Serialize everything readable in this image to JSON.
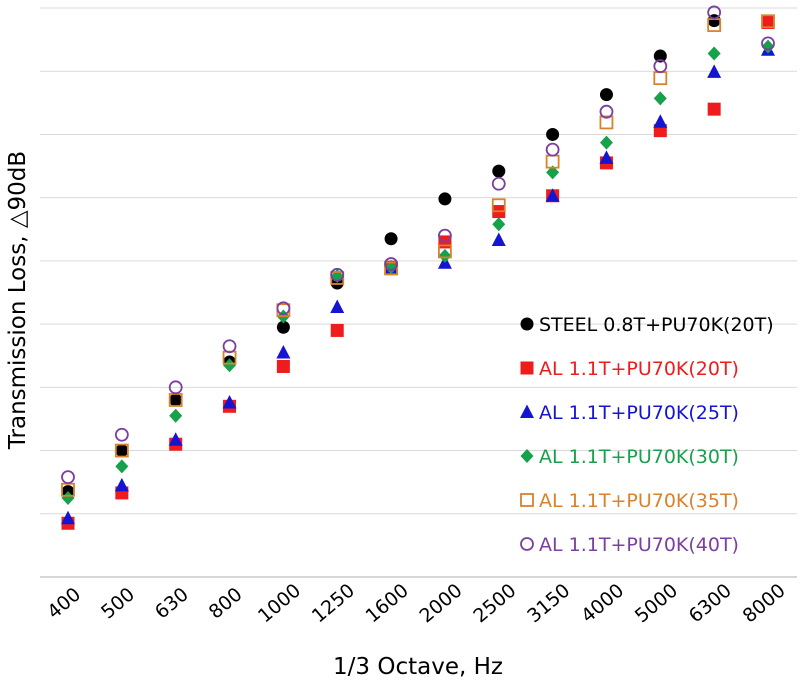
{
  "chart_data": {
    "type": "scatter",
    "title": "",
    "xlabel": "1/3 Octave, Hz",
    "ylabel": "Transmission Loss, △90dB",
    "categories": [
      "400",
      "500",
      "630",
      "800",
      "1000",
      "1250",
      "1600",
      "2000",
      "2500",
      "3150",
      "4000",
      "5000",
      "6300",
      "8000"
    ],
    "y_tick_count": 9,
    "grid": true,
    "legend_position": "right",
    "series": [
      {
        "name": "STEEL 0.8T+PU70K(20T)",
        "marker": "filled-circle",
        "color": "#000000",
        "values": [
          1.35,
          2.0,
          2.8,
          3.4,
          3.95,
          4.65,
          5.35,
          5.98,
          6.42,
          7.0,
          7.63,
          8.24,
          8.8,
          8.78
        ]
      },
      {
        "name": "AL 1.1T+PU70K(20T)",
        "marker": "filled-square",
        "color": "#ee1c1c",
        "values": [
          0.85,
          1.33,
          2.1,
          2.7,
          3.33,
          3.9,
          4.9,
          5.3,
          5.78,
          6.03,
          6.55,
          7.06,
          7.4,
          8.77
        ]
      },
      {
        "name": "AL 1.1T+PU70K(25T)",
        "marker": "filled-triangle",
        "color": "#1414d2",
        "values": [
          0.93,
          1.45,
          2.17,
          2.76,
          3.55,
          4.27,
          4.9,
          4.97,
          5.33,
          6.03,
          6.63,
          7.2,
          7.99,
          8.34
        ]
      },
      {
        "name": "AL 1.1T+PU70K(30T)",
        "marker": "filled-diamond",
        "color": "#17a14a",
        "values": [
          1.25,
          1.75,
          2.55,
          3.35,
          4.12,
          4.76,
          4.9,
          5.08,
          5.58,
          6.4,
          6.87,
          7.57,
          8.28,
          8.39
        ]
      },
      {
        "name": "AL 1.1T+PU70K(35T)",
        "marker": "open-square",
        "color": "#d9822b",
        "values": [
          1.38,
          2.0,
          2.8,
          3.47,
          4.22,
          4.73,
          4.88,
          5.15,
          5.88,
          6.57,
          7.19,
          7.89,
          8.73,
          8.79
        ]
      },
      {
        "name": "AL 1.1T+PU70K(40T)",
        "marker": "open-circle",
        "color": "#7b3fa0",
        "values": [
          1.58,
          2.25,
          3.0,
          3.65,
          4.25,
          4.78,
          4.95,
          5.4,
          6.22,
          6.76,
          7.36,
          8.08,
          8.93,
          8.44
        ]
      }
    ]
  }
}
